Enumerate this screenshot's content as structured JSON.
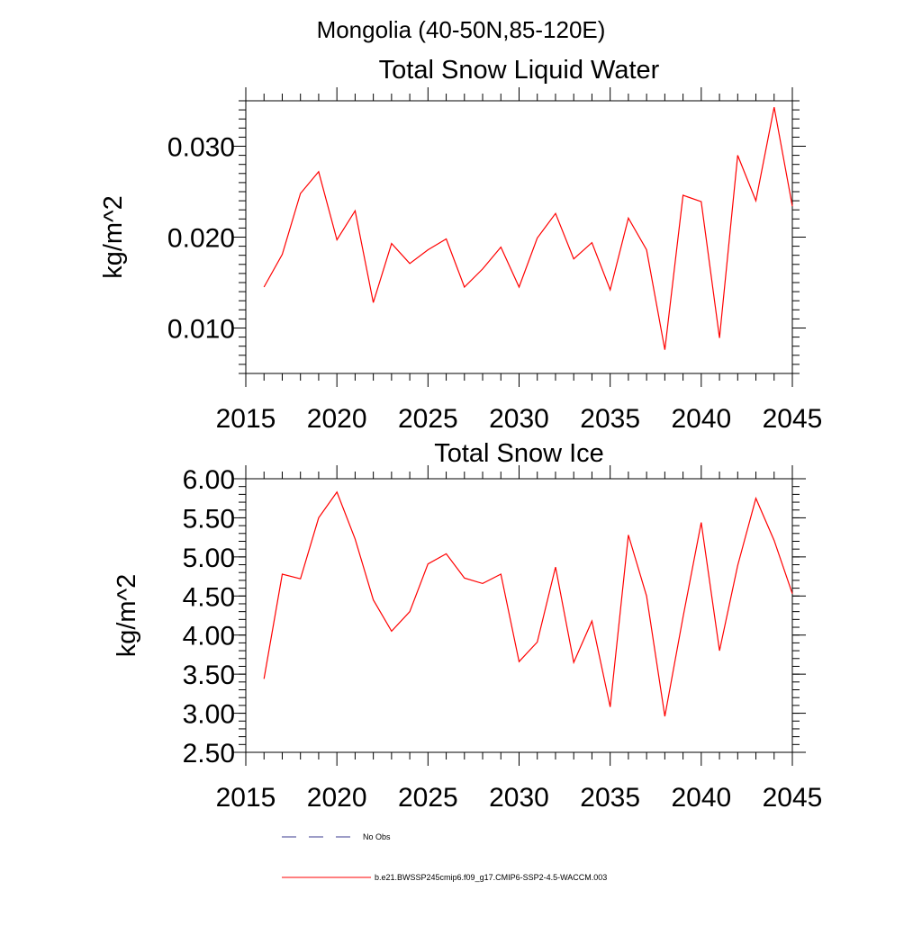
{
  "page_title": "Mongolia (40-50N,85-120E)",
  "legend": {
    "entries": [
      {
        "label": "No Obs",
        "style": "dashed",
        "color": "#3b3b8f"
      },
      {
        "label": "b.e21.BWSSP245cmip6.f09_g17.CMIP6-SSP2-4.5-WACCM.003",
        "style": "solid",
        "color": "#ff0000"
      }
    ]
  },
  "chart_data": [
    {
      "type": "line",
      "title": "Total Snow Liquid Water",
      "xlabel": "",
      "ylabel": "kg/m^2",
      "xlim": [
        2015,
        2045
      ],
      "ylim": [
        0.005,
        0.035
      ],
      "xticks": [
        2015,
        2020,
        2025,
        2030,
        2035,
        2040,
        2045
      ],
      "xtick_labels": [
        "2015",
        "2020",
        "2025",
        "2030",
        "2035",
        "2040",
        "2045"
      ],
      "yticks": [
        0.01,
        0.02,
        0.03
      ],
      "ytick_labels": [
        "0.010",
        "0.020",
        "0.030"
      ],
      "series": [
        {
          "name": "b.e21.BWSSP245cmip6.f09_g17.CMIP6-SSP2-4.5-WACCM.003",
          "color": "#ff0000",
          "x": [
            2016,
            2017,
            2018,
            2019,
            2020,
            2021,
            2022,
            2023,
            2024,
            2025,
            2026,
            2027,
            2028,
            2029,
            2030,
            2031,
            2032,
            2033,
            2034,
            2035,
            2036,
            2037,
            2038,
            2039,
            2040,
            2041,
            2042,
            2043,
            2044,
            2045
          ],
          "values": [
            0.0145,
            0.0181,
            0.0248,
            0.0272,
            0.0197,
            0.0229,
            0.0128,
            0.0193,
            0.0171,
            0.0186,
            0.0198,
            0.0145,
            0.0165,
            0.0189,
            0.0145,
            0.0199,
            0.0226,
            0.0176,
            0.0194,
            0.0142,
            0.0221,
            0.0186,
            0.0076,
            0.0246,
            0.0239,
            0.0089,
            0.029,
            0.024,
            0.0343,
            0.0234
          ]
        }
      ]
    },
    {
      "type": "line",
      "title": "Total Snow Ice",
      "xlabel": "",
      "ylabel": "kg/m^2",
      "xlim": [
        2015,
        2045
      ],
      "ylim": [
        2.5,
        6.0
      ],
      "xticks": [
        2015,
        2020,
        2025,
        2030,
        2035,
        2040,
        2045
      ],
      "xtick_labels": [
        "2015",
        "2020",
        "2025",
        "2030",
        "2035",
        "2040",
        "2045"
      ],
      "yticks": [
        2.5,
        3.0,
        3.5,
        4.0,
        4.5,
        5.0,
        5.5,
        6.0
      ],
      "ytick_labels": [
        "2.50",
        "3.00",
        "3.50",
        "4.00",
        "4.50",
        "5.00",
        "5.50",
        "6.00"
      ],
      "series": [
        {
          "name": "b.e21.BWSSP245cmip6.f09_g17.CMIP6-SSP2-4.5-WACCM.003",
          "color": "#ff0000",
          "x": [
            2016,
            2017,
            2018,
            2019,
            2020,
            2021,
            2022,
            2023,
            2024,
            2025,
            2026,
            2027,
            2028,
            2029,
            2030,
            2031,
            2032,
            2033,
            2034,
            2035,
            2036,
            2037,
            2038,
            2039,
            2040,
            2041,
            2042,
            2043,
            2044,
            2045
          ],
          "values": [
            3.44,
            4.78,
            4.72,
            5.5,
            5.83,
            5.23,
            4.45,
            4.05,
            4.3,
            4.91,
            5.04,
            4.73,
            4.66,
            4.78,
            3.66,
            3.91,
            4.87,
            3.65,
            4.18,
            3.08,
            5.28,
            4.5,
            2.96,
            4.23,
            5.44,
            3.8,
            4.89,
            5.75,
            5.21,
            4.53
          ]
        }
      ]
    }
  ]
}
